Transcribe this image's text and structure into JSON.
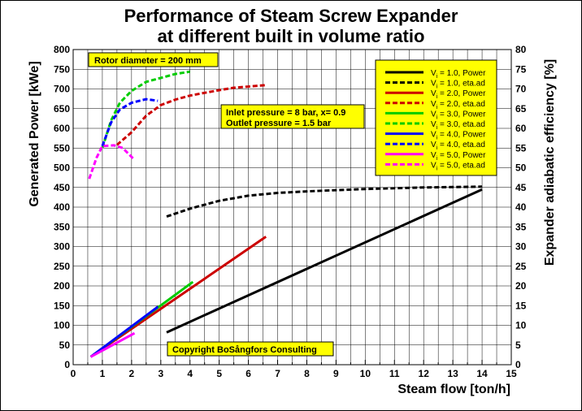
{
  "chart_data": {
    "type": "line",
    "title_line1": "Performance of Steam Screw Expander",
    "title_line2": "at different built in volume ratio",
    "xlabel": "Steam flow [ton/h]",
    "ylabel_left": "Generated Power [kWe]",
    "ylabel_right": "Expander adiabatic efficiency [%]",
    "xlim": [
      0,
      15
    ],
    "ylim_left": [
      0,
      800
    ],
    "ylim_right": [
      0,
      80
    ],
    "x_ticks": [
      "0",
      "0.5",
      "1",
      "1.5",
      "2",
      "2.5",
      "3",
      "3.5",
      "4",
      "4.5",
      "5",
      "5.5",
      "6",
      "6.5",
      "7",
      "7.5",
      "8",
      "8.5",
      "9",
      "9.5",
      "10",
      "10.5",
      "11",
      "11.5",
      "12",
      "12.5",
      "13",
      "13.5",
      "14",
      "14.5",
      "15"
    ],
    "x_tick_labels": [
      "0",
      "1",
      "2",
      "3",
      "4",
      "5",
      "6",
      "7",
      "8",
      "9",
      "10",
      "11",
      "12",
      "13",
      "14",
      "15"
    ],
    "y_left_tick_labels": [
      "0",
      "50",
      "100",
      "150",
      "200",
      "250",
      "300",
      "350",
      "400",
      "450",
      "500",
      "550",
      "600",
      "650",
      "700",
      "750",
      "800"
    ],
    "y_right_tick_labels": [
      "0",
      "5",
      "10",
      "15",
      "20",
      "25",
      "30",
      "35",
      "40",
      "45",
      "50",
      "55",
      "60",
      "65",
      "70",
      "75",
      "80"
    ],
    "grid": true,
    "legend_position": "top-right",
    "annotations": {
      "rotor": "Rotor diameter = 200 mm",
      "inlet": "Inlet pressure = 8 bar, x= 0.9",
      "outlet": "Outlet pressure = 1.5 bar",
      "copyright": "Copyright BoSångfors Consulting"
    },
    "series": [
      {
        "name": "V = 1.0, Power",
        "vi": "1.0",
        "kind": "Power",
        "axis": "left",
        "color": "#000000",
        "dash": false,
        "x": [
          3.2,
          14.0
        ],
        "y": [
          82,
          445
        ]
      },
      {
        "name": "V = 1.0, eta.ad",
        "vi": "1.0",
        "kind": "eta.ad",
        "axis": "right",
        "color": "#000000",
        "dash": true,
        "x": [
          3.2,
          4,
          5,
          6,
          7,
          8,
          9,
          10,
          11,
          12,
          13,
          14
        ],
        "y": [
          37.6,
          39.6,
          41.6,
          42.9,
          43.6,
          44.0,
          44.3,
          44.6,
          44.8,
          45.0,
          45.1,
          45.2
        ]
      },
      {
        "name": "V = 2.0, Power",
        "vi": "2.0",
        "kind": "Power",
        "axis": "left",
        "color": "#cc0000",
        "dash": false,
        "x": [
          0.6,
          6.6
        ],
        "y": [
          20,
          325
        ]
      },
      {
        "name": "V = 2.0, eta.ad",
        "vi": "2.0",
        "kind": "eta.ad",
        "axis": "right",
        "color": "#cc0000",
        "dash": true,
        "x": [
          1.5,
          2.0,
          2.5,
          3.0,
          3.5,
          4.0,
          4.5,
          5.0,
          5.5,
          6.0,
          6.6
        ],
        "y": [
          55.8,
          59.0,
          63.2,
          65.9,
          67.3,
          68.3,
          69.0,
          69.7,
          70.3,
          70.6,
          71.0
        ]
      },
      {
        "name": "V = 3.0, Power",
        "vi": "3.0",
        "kind": "Power",
        "axis": "left",
        "color": "#00cc00",
        "dash": false,
        "x": [
          0.6,
          4.1
        ],
        "y": [
          20,
          210
        ]
      },
      {
        "name": "V = 3.0, eta.ad",
        "vi": "3.0",
        "kind": "eta.ad",
        "axis": "right",
        "color": "#00cc00",
        "dash": true,
        "x": [
          1.0,
          1.3,
          1.6,
          2.0,
          2.5,
          3.0,
          3.5,
          4.0
        ],
        "y": [
          55.0,
          62.0,
          66.5,
          69.5,
          71.8,
          72.8,
          73.8,
          74.4
        ]
      },
      {
        "name": "V = 4.0, Power",
        "vi": "4.0",
        "kind": "Power",
        "axis": "left",
        "color": "#0000ff",
        "dash": false,
        "x": [
          0.6,
          2.9
        ],
        "y": [
          20,
          147
        ]
      },
      {
        "name": "V = 4.0, eta.ad",
        "vi": "4.0",
        "kind": "eta.ad",
        "axis": "right",
        "color": "#0000ff",
        "dash": true,
        "x": [
          1.0,
          1.3,
          1.6,
          2.0,
          2.5,
          2.9
        ],
        "y": [
          55.5,
          61.5,
          64.8,
          66.5,
          67.4,
          67.0
        ]
      },
      {
        "name": "V = 5.0, Power",
        "vi": "5.0",
        "kind": "Power",
        "axis": "left",
        "color": "#ff00ff",
        "dash": false,
        "x": [
          0.6,
          2.1
        ],
        "y": [
          20,
          80
        ]
      },
      {
        "name": "V = 5.0, eta.ad",
        "vi": "5.0",
        "kind": "eta.ad",
        "axis": "right",
        "color": "#ff00ff",
        "dash": true,
        "x": [
          0.55,
          0.8,
          1.0,
          1.4,
          1.7,
          2.1
        ],
        "y": [
          47.2,
          52.5,
          55.5,
          55.7,
          55.0,
          52.0
        ]
      }
    ]
  }
}
